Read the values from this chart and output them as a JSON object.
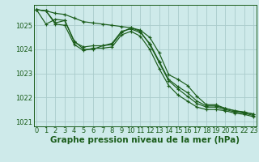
{
  "background_color": "#ceeaea",
  "grid_color": "#aacccc",
  "line_color": "#1a5c1a",
  "xlabel": "Graphe pression niveau de la mer (hPa)",
  "xlabel_fontsize": 7.5,
  "tick_fontsize": 6,
  "ylim": [
    1020.8,
    1025.85
  ],
  "xlim": [
    -0.3,
    23.3
  ],
  "yticks": [
    1021,
    1022,
    1023,
    1024,
    1025
  ],
  "xticks": [
    0,
    1,
    2,
    3,
    4,
    5,
    6,
    7,
    8,
    9,
    10,
    11,
    12,
    13,
    14,
    15,
    16,
    17,
    18,
    19,
    20,
    21,
    22,
    23
  ],
  "series": [
    [
      1025.65,
      1025.6,
      1025.1,
      1025.2,
      1024.35,
      1024.0,
      1024.0,
      1024.15,
      1024.25,
      1024.75,
      1024.85,
      1024.7,
      1024.25,
      1023.5,
      1022.75,
      1022.45,
      1022.2,
      1021.85,
      1021.65,
      1021.65,
      1021.55,
      1021.45,
      1021.4,
      1021.3
    ],
    [
      1025.65,
      1025.6,
      1025.05,
      1025.0,
      1024.2,
      1023.95,
      1024.05,
      1024.05,
      1024.1,
      1024.6,
      1024.75,
      1024.55,
      1024.0,
      1023.2,
      1022.5,
      1022.1,
      1021.85,
      1021.6,
      1021.5,
      1021.5,
      1021.45,
      1021.35,
      1021.3,
      1021.2
    ],
    [
      1025.65,
      1025.05,
      1025.25,
      1025.2,
      1024.3,
      1024.1,
      1024.15,
      1024.15,
      1024.2,
      1024.7,
      1024.9,
      1024.75,
      1024.2,
      1023.45,
      1022.7,
      1022.35,
      1022.05,
      1021.75,
      1021.6,
      1021.6,
      1021.5,
      1021.4,
      1021.35,
      1021.25
    ],
    [
      1025.65,
      1025.6,
      1025.5,
      1025.45,
      1025.3,
      1025.15,
      1025.1,
      1025.05,
      1025.0,
      1024.95,
      1024.9,
      1024.8,
      1024.5,
      1023.85,
      1022.95,
      1022.75,
      1022.5,
      1022.05,
      1021.7,
      1021.7,
      1021.55,
      1021.45,
      1021.38,
      1021.32
    ]
  ]
}
